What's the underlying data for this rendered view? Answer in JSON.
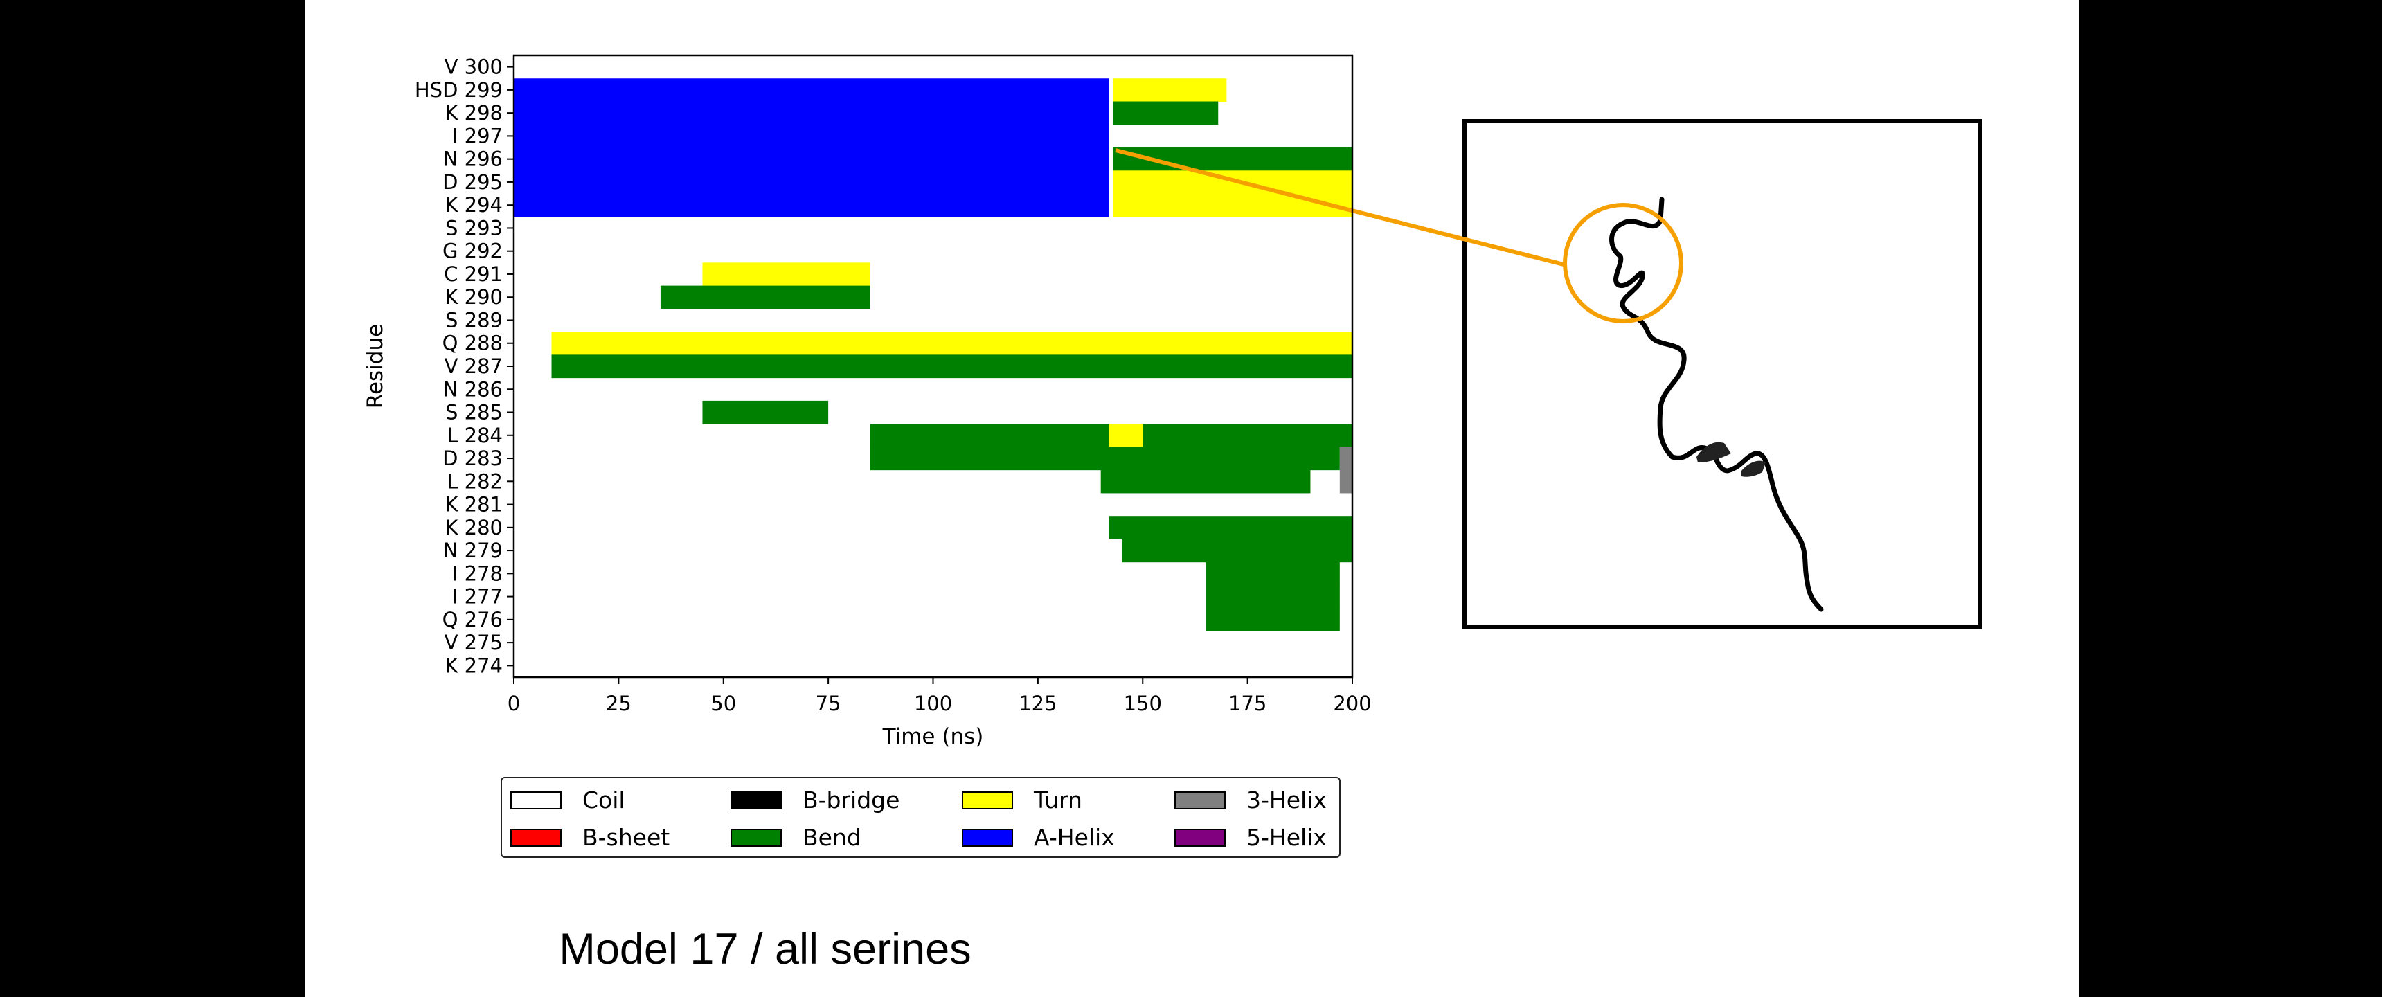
{
  "chart_data": {
    "type": "heatmap",
    "title": "Model 17 / all serines",
    "xlabel": "Time (ns)",
    "ylabel": "Residue",
    "xlim": [
      0,
      200
    ],
    "xticks": [
      "0",
      "25",
      "50",
      "75",
      "100",
      "125",
      "150",
      "175",
      "200"
    ],
    "residues": [
      "V 300",
      "HSD 299",
      "K 298",
      "I 297",
      "N 296",
      "D 295",
      "K 294",
      "S 293",
      "G 292",
      "C 291",
      "K 290",
      "S 289",
      "Q 288",
      "V 287",
      "N 286",
      "S 285",
      "L 284",
      "D 283",
      "L 282",
      "K 281",
      "K 280",
      "N 279",
      "I 278",
      "I 277",
      "Q 276",
      "V 275",
      "K 274"
    ],
    "legend_position": "below",
    "categories": [
      {
        "name": "Coil",
        "color": "#ffffff"
      },
      {
        "name": "B-sheet",
        "color": "#ff0000"
      },
      {
        "name": "B-bridge",
        "color": "#000000"
      },
      {
        "name": "Bend",
        "color": "#008000"
      },
      {
        "name": "Turn",
        "color": "#ffff00"
      },
      {
        "name": "A-Helix",
        "color": "#0000ff"
      },
      {
        "name": "3-Helix",
        "color": "#808080"
      },
      {
        "name": "5-Helix",
        "color": "#800080"
      }
    ],
    "segments": [
      {
        "residue": "HSD 299",
        "start": 0,
        "end": 142,
        "state": "A-Helix"
      },
      {
        "residue": "K 298",
        "start": 0,
        "end": 142,
        "state": "A-Helix"
      },
      {
        "residue": "I 297",
        "start": 0,
        "end": 142,
        "state": "A-Helix"
      },
      {
        "residue": "N 296",
        "start": 0,
        "end": 142,
        "state": "A-Helix"
      },
      {
        "residue": "D 295",
        "start": 0,
        "end": 142,
        "state": "A-Helix"
      },
      {
        "residue": "K 294",
        "start": 0,
        "end": 142,
        "state": "A-Helix"
      },
      {
        "residue": "HSD 299",
        "start": 143,
        "end": 170,
        "state": "Turn"
      },
      {
        "residue": "K 298",
        "start": 143,
        "end": 168,
        "state": "Bend"
      },
      {
        "residue": "N 296",
        "start": 143,
        "end": 200,
        "state": "Bend"
      },
      {
        "residue": "D 295",
        "start": 143,
        "end": 200,
        "state": "Turn"
      },
      {
        "residue": "K 294",
        "start": 143,
        "end": 200,
        "state": "Turn"
      },
      {
        "residue": "C 291",
        "start": 45,
        "end": 85,
        "state": "Turn"
      },
      {
        "residue": "K 290",
        "start": 35,
        "end": 85,
        "state": "Bend"
      },
      {
        "residue": "Q 288",
        "start": 9,
        "end": 200,
        "state": "Turn"
      },
      {
        "residue": "V 287",
        "start": 9,
        "end": 200,
        "state": "Bend"
      },
      {
        "residue": "S 285",
        "start": 45,
        "end": 75,
        "state": "Bend"
      },
      {
        "residue": "L 284",
        "start": 85,
        "end": 200,
        "state": "Bend"
      },
      {
        "residue": "L 284",
        "start": 142,
        "end": 150,
        "state": "Turn"
      },
      {
        "residue": "D 283",
        "start": 85,
        "end": 197,
        "state": "Bend"
      },
      {
        "residue": "D 283",
        "start": 197,
        "end": 200,
        "state": "3-Helix"
      },
      {
        "residue": "L 282",
        "start": 140,
        "end": 190,
        "state": "Bend"
      },
      {
        "residue": "L 282",
        "start": 197,
        "end": 200,
        "state": "3-Helix"
      },
      {
        "residue": "K 280",
        "start": 142,
        "end": 200,
        "state": "Bend"
      },
      {
        "residue": "N 279",
        "start": 145,
        "end": 200,
        "state": "Bend"
      },
      {
        "residue": "I 278",
        "start": 165,
        "end": 197,
        "state": "Bend"
      },
      {
        "residue": "I 277",
        "start": 165,
        "end": 197,
        "state": "Bend"
      },
      {
        "residue": "Q 276",
        "start": 165,
        "end": 197,
        "state": "Bend"
      }
    ]
  },
  "inset": {
    "description_icon": "protein-ribbon-structure"
  }
}
